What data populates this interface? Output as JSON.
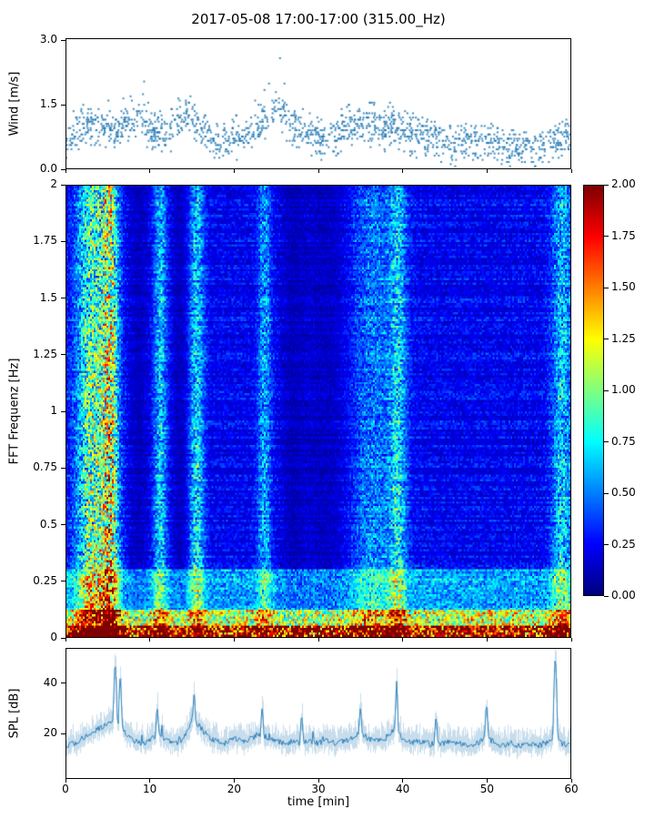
{
  "title": "2017-05-08 17:00-17:00 (315.00_Hz)",
  "xlabel": "time [min]",
  "xticks": {
    "values": [
      0,
      10,
      20,
      30,
      40,
      50,
      60
    ],
    "labels": [
      "0",
      "10",
      "20",
      "30",
      "40",
      "50",
      "60"
    ]
  },
  "colors": {
    "series": "#1f77b4",
    "envelope": "rgba(31,119,180,0.25)",
    "colormap": "jet"
  },
  "chart_data": [
    {
      "type": "scatter",
      "name": "wind",
      "ylabel": "Wind [m/s]",
      "xlim": [
        0,
        60
      ],
      "ylim": [
        0,
        3.05
      ],
      "yticks": [
        0,
        1.5,
        3
      ],
      "ytick_labels": [
        "0.0",
        "1.5",
        "3.0"
      ],
      "marker_color": "#1f77b4",
      "per_minute_mean": [
        0.6,
        0.8,
        0.9,
        1.0,
        0.9,
        1.0,
        0.8,
        1.1,
        1.0,
        1.3,
        0.8,
        0.9,
        0.7,
        1.0,
        1.3,
        1.2,
        1.0,
        0.8,
        0.7,
        0.6,
        0.8,
        0.7,
        0.9,
        1.0,
        1.2,
        1.5,
        1.2,
        1.0,
        0.9,
        0.8,
        0.7,
        0.6,
        0.8,
        0.9,
        1.0,
        1.0,
        1.1,
        1.0,
        0.9,
        1.0,
        0.9,
        0.8,
        0.8,
        0.7,
        0.7,
        0.6,
        0.6,
        0.7,
        0.6,
        0.6,
        0.7,
        0.6,
        0.5,
        0.5,
        0.4,
        0.5,
        0.4,
        0.5,
        0.6,
        0.7,
        0.8
      ],
      "per_minute_max": [
        1.1,
        1.4,
        1.5,
        1.6,
        1.5,
        1.7,
        1.4,
        1.8,
        1.7,
        2.3,
        1.4,
        1.5,
        1.2,
        1.7,
        2.1,
        2.0,
        1.6,
        1.3,
        1.2,
        1.1,
        1.4,
        1.2,
        1.5,
        1.8,
        2.2,
        3.0,
        2.4,
        1.8,
        1.5,
        1.3,
        1.2,
        1.1,
        1.3,
        1.4,
        1.6,
        1.6,
        1.7,
        1.6,
        1.5,
        1.6,
        1.4,
        1.3,
        1.3,
        1.2,
        1.1,
        1.0,
        1.0,
        1.1,
        1.0,
        1.0,
        1.1,
        1.0,
        0.9,
        0.9,
        0.8,
        0.9,
        0.8,
        0.9,
        1.0,
        1.1,
        1.2
      ]
    },
    {
      "type": "heatmap",
      "name": "spectrogram",
      "ylabel": "FFT Frequenz [Hz]",
      "xlim": [
        0,
        60
      ],
      "ylim": [
        0,
        2
      ],
      "yticks": [
        2,
        1.75,
        1.5,
        1.25,
        1,
        0.75,
        0.5,
        0.25,
        0
      ],
      "ytick_labels": [
        "2",
        "1.75",
        "1.5",
        "1.25",
        "1",
        "0.75",
        "0.5",
        "0.25",
        "0"
      ],
      "value_range": [
        0,
        2
      ],
      "colormap": "jet",
      "colorbar": {
        "ticks": [
          2,
          1.75,
          1.5,
          1.25,
          1,
          0.75,
          0.5,
          0.25,
          0
        ],
        "tick_labels": [
          "2.00",
          "1.75",
          "1.50",
          "1.25",
          "1.00",
          "0.75",
          "0.50",
          "0.25",
          "0.00"
        ]
      },
      "background_level": 0.16,
      "bright_columns": [
        {
          "t": 3.0,
          "w": 1.8,
          "amp": 0.9
        },
        {
          "t": 5.2,
          "w": 1.0,
          "amp": 1.1
        },
        {
          "t": 11.2,
          "w": 0.8,
          "amp": 0.55
        },
        {
          "t": 15.5,
          "w": 0.9,
          "amp": 0.6
        },
        {
          "t": 23.6,
          "w": 0.8,
          "amp": 0.45
        },
        {
          "t": 36.5,
          "w": 3.0,
          "amp": 0.35
        },
        {
          "t": 39.5,
          "w": 1.0,
          "amp": 0.5
        },
        {
          "t": 59.0,
          "w": 1.2,
          "amp": 0.55
        }
      ],
      "dark_columns": [
        {
          "t": 8.7,
          "w": 1.2
        },
        {
          "t": 13.5,
          "w": 1.0
        },
        {
          "t": 27.0,
          "w": 1.5
        },
        {
          "t": 31.0,
          "w": 3.0
        }
      ],
      "low_freq_bands": [
        {
          "f0": 0.0,
          "f1": 0.05,
          "amp": 1.8
        },
        {
          "f0": 0.05,
          "f1": 0.12,
          "amp": 0.9
        },
        {
          "f0": 0.12,
          "f1": 0.3,
          "amp": 0.35
        }
      ]
    },
    {
      "type": "line",
      "name": "spl",
      "ylabel": "SPL [dB]",
      "xlim": [
        0,
        60
      ],
      "ylim": [
        2,
        54
      ],
      "yticks": [
        20,
        40
      ],
      "ytick_labels": [
        "20",
        "40"
      ],
      "line_color": "#1f77b4",
      "per_minute_mean": [
        15,
        16,
        18,
        20,
        22,
        24,
        26,
        20,
        17,
        16,
        17,
        20,
        17,
        16,
        18,
        26,
        22,
        18,
        17,
        16,
        18,
        17,
        18,
        20,
        18,
        17,
        16,
        17,
        16,
        17,
        16,
        17,
        16,
        17,
        18,
        20,
        18,
        17,
        18,
        22,
        18,
        16,
        17,
        16,
        15,
        16,
        17,
        16,
        15,
        16,
        19,
        16,
        15,
        16,
        15,
        16,
        15,
        16,
        18,
        16,
        15
      ],
      "spikes": [
        {
          "t": 5.8,
          "v": 48
        },
        {
          "t": 6.4,
          "v": 42
        },
        {
          "t": 10.8,
          "v": 30
        },
        {
          "t": 15.2,
          "v": 36
        },
        {
          "t": 23.3,
          "v": 30
        },
        {
          "t": 28.0,
          "v": 27
        },
        {
          "t": 35.0,
          "v": 30
        },
        {
          "t": 39.3,
          "v": 37
        },
        {
          "t": 44.0,
          "v": 26
        },
        {
          "t": 50.0,
          "v": 31
        },
        {
          "t": 58.2,
          "v": 50
        }
      ]
    }
  ]
}
